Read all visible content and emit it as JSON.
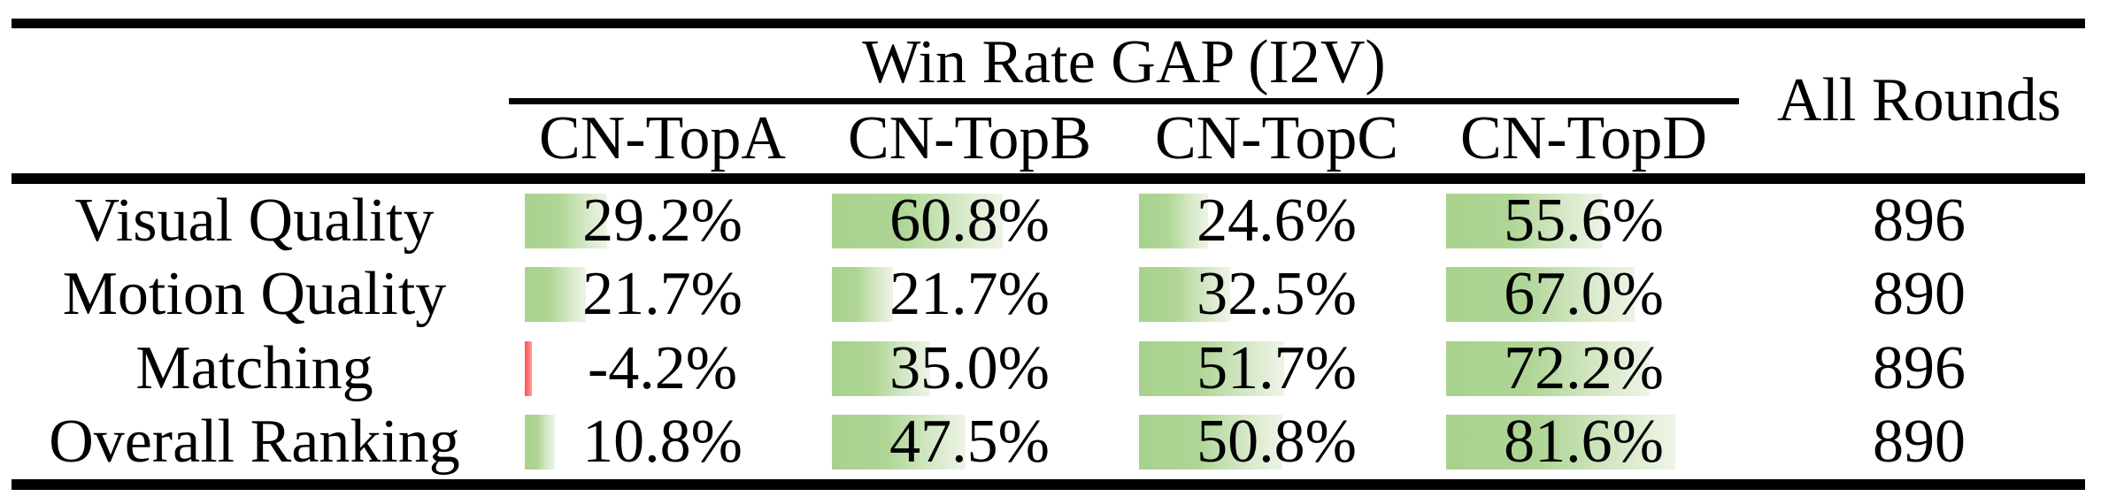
{
  "table": {
    "title": "Win Rate GAP (I2V)",
    "all_rounds_header": "All Rounds",
    "columns": [
      "CN-TopA",
      "CN-TopB",
      "CN-TopC",
      "CN-TopD"
    ],
    "rows": [
      {
        "label": "Visual Quality",
        "values": [
          29.2,
          60.8,
          24.6,
          55.6
        ],
        "all_rounds": "896"
      },
      {
        "label": "Motion Quality",
        "values": [
          21.7,
          21.7,
          32.5,
          67.0
        ],
        "all_rounds": "890"
      },
      {
        "label": "Matching",
        "values": [
          -4.2,
          35.0,
          51.7,
          72.2
        ],
        "all_rounds": "896"
      },
      {
        "label": "Overall Ranking",
        "values": [
          10.8,
          47.5,
          50.8,
          81.6
        ],
        "all_rounds": "890"
      }
    ],
    "colors": {
      "positive_bar_start": "#a8d28e",
      "positive_bar_end": "#eef4e6",
      "negative_bar": "#ff4d4d",
      "text": "#000000",
      "rule": "#000000",
      "background": "#ffffff"
    }
  },
  "chart_data": {
    "type": "table",
    "title": "Win Rate GAP (I2V)",
    "categories": [
      "Visual Quality",
      "Motion Quality",
      "Matching",
      "Overall Ranking"
    ],
    "series": [
      {
        "name": "CN-TopA",
        "values": [
          29.2,
          21.7,
          -4.2,
          10.8
        ]
      },
      {
        "name": "CN-TopB",
        "values": [
          60.8,
          21.7,
          35.0,
          47.5
        ]
      },
      {
        "name": "CN-TopC",
        "values": [
          24.6,
          32.5,
          51.7,
          50.8
        ]
      },
      {
        "name": "CN-TopD",
        "values": [
          55.6,
          67.0,
          72.2,
          81.6
        ]
      }
    ],
    "all_rounds": [
      896,
      890,
      896,
      890
    ],
    "unit": "%",
    "bar_style": "in-cell data bars, green gradient for positive, red for negative"
  }
}
